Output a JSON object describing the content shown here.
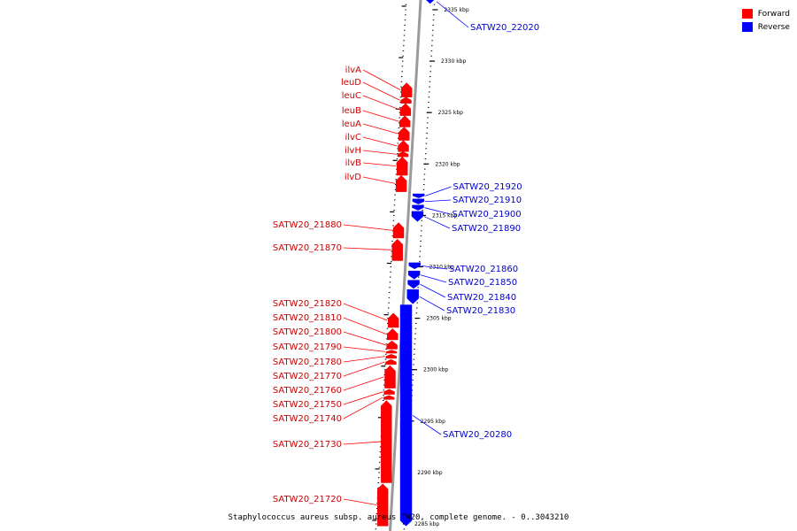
{
  "caption": "Staphylococcus aureus subsp. aureus TW20, complete genome. - 0..3043210",
  "legend": [
    {
      "label": "Forward",
      "color": "#ff0000"
    },
    {
      "label": "Reverse",
      "color": "#0000ff"
    }
  ],
  "colors": {
    "forward": "#ff0000",
    "reverse": "#0000ff",
    "forward_label": "#cc0000",
    "reverse_label": "#0000cc",
    "axis": "#999999"
  },
  "ticks": [
    {
      "kbp": 2335,
      "label": "2335 kbp"
    },
    {
      "kbp": 2330,
      "label": "2330 kbp"
    },
    {
      "kbp": 2325,
      "label": "2325 kbp"
    },
    {
      "kbp": 2320,
      "label": "2320 kbp"
    },
    {
      "kbp": 2315,
      "label": "2315 kbp"
    },
    {
      "kbp": 2310,
      "label": "2310 kbp"
    },
    {
      "kbp": 2305,
      "label": "2305 kbp"
    },
    {
      "kbp": 2300,
      "label": "2300 kbp"
    },
    {
      "kbp": 2295,
      "label": "2295 kbp"
    },
    {
      "kbp": 2290,
      "label": "2290 kbp"
    },
    {
      "kbp": 2285,
      "label": "2285 kbp"
    }
  ],
  "forward_genes": [
    {
      "label": "ilvA",
      "start": 2327.9,
      "end": 2326.5
    },
    {
      "label": "leuD",
      "start": 2326.5,
      "end": 2325.9
    },
    {
      "label": "leuC",
      "start": 2325.9,
      "end": 2324.7
    },
    {
      "label": "leuB",
      "start": 2324.7,
      "end": 2323.6
    },
    {
      "label": "leuA",
      "start": 2323.6,
      "end": 2322.3
    },
    {
      "label": "ilvC",
      "start": 2322.3,
      "end": 2321.2
    },
    {
      "label": "ilvH",
      "start": 2321.2,
      "end": 2320.7
    },
    {
      "label": "ilvB",
      "start": 2320.7,
      "end": 2318.9
    },
    {
      "label": "ilvD",
      "start": 2318.9,
      "end": 2317.3
    },
    {
      "label": "SATW20_21880",
      "start": 2314.3,
      "end": 2312.8
    },
    {
      "label": "SATW20_21870",
      "start": 2312.7,
      "end": 2310.6
    },
    {
      "label": "SATW20_21820",
      "start": 2305.5,
      "end": 2304.1
    },
    {
      "label": "SATW20_21810",
      "start": 2304.0,
      "end": 2302.9
    },
    {
      "label": "SATW20_21800",
      "start": 2302.8,
      "end": 2302.0
    },
    {
      "label": "SATW20_21790",
      "start": 2301.9,
      "end": 2301.6
    },
    {
      "label": "SATW20_21780",
      "start": 2301.5,
      "end": 2301.1
    },
    {
      "label": "SATW20_21770",
      "start": 2301.0,
      "end": 2300.5
    },
    {
      "label": "SATW20_21760",
      "start": 2300.4,
      "end": 2298.2
    },
    {
      "label": "SATW20_21750",
      "start": 2298.1,
      "end": 2297.6
    },
    {
      "label": "SATW20_21740",
      "start": 2297.5,
      "end": 2297.1
    },
    {
      "label": "SATW20_21730",
      "start": 2297.0,
      "end": 2289.0
    },
    {
      "label": "SATW20_21720",
      "start": 2288.9,
      "end": 2284.8
    }
  ],
  "reverse_genes": [
    {
      "label": "SATW20_22020",
      "start": 2335.6,
      "end": 2336.9
    },
    {
      "label": "SATW20_21920",
      "start": 2316.7,
      "end": 2317.1
    },
    {
      "label": "SATW20_21910",
      "start": 2316.1,
      "end": 2316.6
    },
    {
      "label": "SATW20_21900",
      "start": 2315.5,
      "end": 2316.0
    },
    {
      "label": "SATW20_21890",
      "start": 2314.4,
      "end": 2315.4
    },
    {
      "label": "SATW20_21860",
      "start": 2309.8,
      "end": 2310.4
    },
    {
      "label": "SATW20_21850",
      "start": 2308.8,
      "end": 2309.6
    },
    {
      "label": "SATW20_21840",
      "start": 2307.9,
      "end": 2308.7
    },
    {
      "label": "SATW20_21830",
      "start": 2306.4,
      "end": 2307.8
    },
    {
      "label": "SATW20_20280",
      "start": 2284.8,
      "end": 2306.3
    }
  ]
}
